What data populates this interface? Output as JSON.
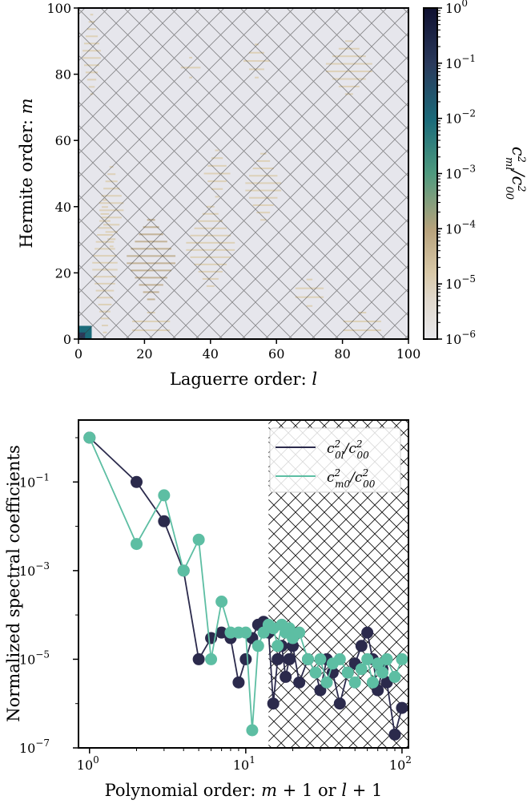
{
  "chart_data": [
    {
      "type": "heatmap",
      "xlabel": "Laguerre order: l",
      "xlabel_var": "l",
      "xlabel_prefix": "Laguerre order: ",
      "ylabel_prefix": "Hermite order: ",
      "ylabel_var": "m",
      "xlim": [
        0,
        100
      ],
      "ylim": [
        0,
        100
      ],
      "xticks": [
        0,
        20,
        40,
        60,
        80,
        100
      ],
      "yticks": [
        0,
        20,
        40,
        60,
        80,
        100
      ],
      "hatch": "cross-hatched region (entire plot area)",
      "colorbar": {
        "scale": "log",
        "range": [
          1e-06,
          1
        ],
        "tick_exponents": [
          "0",
          "−1",
          "−2",
          "−3",
          "−4",
          "−5",
          "−6"
        ],
        "label": "c²_ml / c²_00",
        "colors": [
          "#e8e8ec",
          "#d9c9a8",
          "#b7a27c",
          "#4f9a7e",
          "#1b6b7a",
          "#2a3a5c",
          "#0f1030"
        ]
      },
      "blobs": [
        {
          "l": 4,
          "m": 86,
          "rl": 3,
          "rm": 12,
          "level": 3e-05
        },
        {
          "l": 10,
          "m": 40,
          "rl": 4,
          "rm": 12,
          "level": 2e-05
        },
        {
          "l": 8,
          "m": 22,
          "rl": 4,
          "rm": 20,
          "level": 3e-05
        },
        {
          "l": 22,
          "m": 24,
          "rl": 8,
          "rm": 12,
          "level": 4e-05
        },
        {
          "l": 40,
          "m": 28,
          "rl": 8,
          "rm": 12,
          "level": 3e-05
        },
        {
          "l": 56,
          "m": 46,
          "rl": 6,
          "rm": 10,
          "level": 2e-05
        },
        {
          "l": 42,
          "m": 50,
          "rl": 4,
          "rm": 7,
          "level": 1.5e-05
        },
        {
          "l": 34,
          "m": 82,
          "rl": 3,
          "rm": 3,
          "level": 8e-06
        },
        {
          "l": 54,
          "m": 84,
          "rl": 4,
          "rm": 5,
          "level": 1e-05
        },
        {
          "l": 82,
          "m": 82,
          "rl": 8,
          "rm": 8,
          "level": 1.2e-05
        },
        {
          "l": 70,
          "m": 14,
          "rl": 6,
          "rm": 4,
          "level": 1e-05
        },
        {
          "l": 86,
          "m": 4,
          "rl": 8,
          "rm": 4,
          "level": 1.5e-05
        },
        {
          "l": 22,
          "m": 4,
          "rl": 8,
          "rm": 4,
          "level": 2e-05
        },
        {
          "l": 2,
          "m": 2,
          "rl": 2,
          "rm": 2,
          "level": 0.01
        },
        {
          "l": 1,
          "m": 1,
          "rl": 1,
          "rm": 1,
          "level": 0.1
        }
      ]
    },
    {
      "type": "line",
      "xscale": "log",
      "yscale": "log",
      "xlabel": "Polynomial order: m + 1 or l + 1",
      "ylabel": "Normalized spectral coefficients",
      "xlim": [
        0.85,
        110
      ],
      "ylim": [
        1e-07,
        2.5
      ],
      "xtick_labels": [
        "10^0",
        "10^1",
        "10^2"
      ],
      "ytick_labels": [
        "10^−1",
        "10^−3",
        "10^−5",
        "10^−7"
      ],
      "hatch_from_x": 14,
      "series": [
        {
          "name": "c²_0l / c²_00",
          "color": "#2b2a4c",
          "x": [
            1,
            2,
            3,
            4,
            5,
            6,
            7,
            8,
            9,
            10,
            11,
            12,
            13,
            14,
            15,
            16,
            17,
            18,
            19,
            20,
            22,
            25,
            28,
            30,
            33,
            36,
            40,
            45,
            50,
            55,
            60,
            65,
            70,
            75,
            80,
            90,
            100
          ],
          "y": [
            1,
            0.1,
            0.013,
            0.001,
            1e-05,
            3e-05,
            4e-05,
            3e-05,
            3e-06,
            1e-05,
            3e-05,
            6e-05,
            7e-05,
            4e-05,
            1e-06,
            1e-05,
            2e-05,
            4e-06,
            1e-05,
            2e-05,
            3e-06,
            1e-05,
            5e-06,
            2e-06,
            1e-05,
            5e-06,
            1e-06,
            5e-06,
            8e-06,
            2e-05,
            4e-05,
            1e-05,
            2e-06,
            6e-06,
            3e-06,
            2e-07,
            8e-07
          ]
        },
        {
          "name": "c²_m0 / c²_00",
          "color": "#5dbea3",
          "x": [
            1,
            2,
            3,
            4,
            5,
            6,
            7,
            8,
            9,
            10,
            11,
            12,
            13,
            14,
            15,
            16,
            17,
            18,
            19,
            20,
            22,
            25,
            28,
            30,
            33,
            36,
            40,
            45,
            50,
            55,
            60,
            65,
            70,
            75,
            80,
            90,
            100
          ],
          "y": [
            1,
            0.004,
            0.05,
            0.001,
            0.005,
            1e-05,
            0.0002,
            4e-05,
            4e-05,
            4e-05,
            2.5e-07,
            2e-05,
            4e-05,
            6e-05,
            5e-05,
            2e-05,
            6e-05,
            4e-05,
            5e-05,
            3e-05,
            4e-05,
            1e-05,
            5e-06,
            1e-05,
            3e-06,
            8e-06,
            1e-05,
            5e-06,
            3e-06,
            6e-06,
            1e-05,
            3e-06,
            8e-06,
            5e-06,
            1e-05,
            4e-06,
            1e-05
          ]
        }
      ]
    }
  ]
}
